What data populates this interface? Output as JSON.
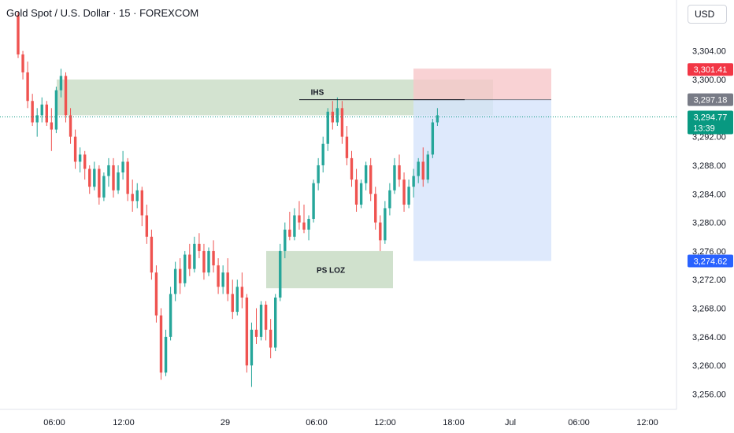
{
  "header": {
    "title": "Gold Spot / U.S. Dollar · 15 · FOREXCOM",
    "currency": "USD"
  },
  "colors": {
    "up": "#26a69a",
    "down": "#ef5350",
    "zone_green": "#c8dcc4",
    "stop_red": "#f7c7c9",
    "target_blue": "#d6e3fb",
    "badge_red": "#f23645",
    "badge_gray": "#787b86",
    "badge_green": "#089981",
    "badge_blue": "#2962ff"
  },
  "annotations": {
    "ihs": "IHS",
    "ps_loz": "PS LOZ"
  },
  "price_badges": {
    "stop": "3,301.41",
    "entry": "3,297.18",
    "last": "3,294.77",
    "countdown": "13:39",
    "target": "3,274.62"
  },
  "chart_data": {
    "type": "candlestick",
    "title": "Gold Spot / U.S. Dollar · 15 · FOREXCOM",
    "y_ticks": [
      "3,304.00",
      "3,300.00",
      "3,292.00",
      "3,288.00",
      "3,284.00",
      "3,280.00",
      "3,276.00",
      "3,272.00",
      "3,268.00",
      "3,264.00",
      "3,260.00",
      "3,256.00"
    ],
    "x_ticks": [
      "06:00",
      "12:00",
      "29",
      "06:00",
      "12:00",
      "18:00",
      "Jul",
      "06:00",
      "12:00"
    ],
    "ylim": [
      3253.5,
      3308.5
    ],
    "key_levels": {
      "stop_loss": 3301.41,
      "entry": 3297.18,
      "last_price": 3294.77,
      "take_profit": 3274.62
    },
    "zones": [
      {
        "label": "",
        "from": 3295.0,
        "to": 3300.0
      },
      {
        "label": "PS LOZ",
        "from": 3270.8,
        "to": 3276.0
      }
    ],
    "ihs_neckline": 3297.18,
    "candles": [
      [
        3309,
        3309.5,
        3303,
        3303.5
      ],
      [
        3303.5,
        3304,
        3300,
        3301
      ],
      [
        3301,
        3302.5,
        3296,
        3297
      ],
      [
        3297,
        3298,
        3293.5,
        3294
      ],
      [
        3294,
        3296,
        3292,
        3295
      ],
      [
        3295,
        3297.5,
        3294,
        3296.5
      ],
      [
        3296.5,
        3297,
        3293.5,
        3294
      ],
      [
        3294,
        3296,
        3290,
        3293
      ],
      [
        3293,
        3299,
        3292.5,
        3298.5
      ],
      [
        3298.5,
        3301.5,
        3297.5,
        3300.5
      ],
      [
        3300.5,
        3301,
        3294,
        3295
      ],
      [
        3295,
        3296,
        3291,
        3292
      ],
      [
        3292,
        3293,
        3287.5,
        3288.5
      ],
      [
        3288.5,
        3290.5,
        3287,
        3289.5
      ],
      [
        3289.5,
        3290,
        3286,
        3287.5
      ],
      [
        3287.5,
        3288,
        3284,
        3285
      ],
      [
        3285,
        3288.5,
        3284.5,
        3287.5
      ],
      [
        3287.5,
        3288,
        3282.5,
        3283.5
      ],
      [
        3283.5,
        3287,
        3283,
        3286.5
      ],
      [
        3286.5,
        3289,
        3285,
        3288
      ],
      [
        3288,
        3289,
        3283.5,
        3284.5
      ],
      [
        3284.5,
        3288,
        3284,
        3287
      ],
      [
        3287,
        3290,
        3286,
        3288.5
      ],
      [
        3288.5,
        3289,
        3283,
        3284
      ],
      [
        3284,
        3286,
        3281.5,
        3283
      ],
      [
        3283,
        3285.5,
        3282,
        3284.5
      ],
      [
        3284.5,
        3285,
        3279.5,
        3281
      ],
      [
        3281,
        3282.5,
        3277,
        3278
      ],
      [
        3278,
        3279,
        3272,
        3273
      ],
      [
        3273,
        3274,
        3266,
        3267
      ],
      [
        3267,
        3268,
        3258,
        3259
      ],
      [
        3259,
        3265,
        3258.5,
        3264
      ],
      [
        3264,
        3271,
        3263.5,
        3270
      ],
      [
        3270,
        3274.5,
        3269,
        3273.5
      ],
      [
        3273.5,
        3275,
        3270,
        3271.5
      ],
      [
        3271.5,
        3276,
        3271,
        3275.5
      ],
      [
        3275.5,
        3277,
        3272.5,
        3273.5
      ],
      [
        3273.5,
        3278,
        3273,
        3277
      ],
      [
        3277,
        3278.5,
        3275,
        3276
      ],
      [
        3276,
        3277,
        3272,
        3273
      ],
      [
        3273,
        3276.5,
        3272.5,
        3276
      ],
      [
        3276,
        3277.5,
        3273,
        3274
      ],
      [
        3274,
        3275,
        3270,
        3271
      ],
      [
        3271,
        3274,
        3270,
        3273
      ],
      [
        3273,
        3275,
        3269,
        3270
      ],
      [
        3270,
        3272,
        3266.5,
        3267.5
      ],
      [
        3267.5,
        3272,
        3267,
        3271
      ],
      [
        3271,
        3273,
        3268,
        3269.5
      ],
      [
        3269.5,
        3270,
        3259,
        3260
      ],
      [
        3260,
        3266,
        3257,
        3265
      ],
      [
        3265,
        3268,
        3263,
        3264
      ],
      [
        3264,
        3269,
        3263.5,
        3268.5
      ],
      [
        3268.5,
        3269,
        3263.5,
        3265
      ],
      [
        3265,
        3266.5,
        3261,
        3262.5
      ],
      [
        3262.5,
        3270,
        3262,
        3269.5
      ],
      [
        3269.5,
        3277,
        3269,
        3276
      ],
      [
        3276,
        3280,
        3275,
        3279
      ],
      [
        3279,
        3281.5,
        3277.5,
        3278
      ],
      [
        3278,
        3282,
        3277.5,
        3281
      ],
      [
        3281,
        3283,
        3279,
        3280
      ],
      [
        3280,
        3282.5,
        3278.5,
        3279
      ],
      [
        3279,
        3281,
        3277.5,
        3280.5
      ],
      [
        3280.5,
        3286,
        3280,
        3285.5
      ],
      [
        3285.5,
        3289,
        3284.5,
        3288
      ],
      [
        3288,
        3292,
        3287,
        3291
      ],
      [
        3291,
        3296,
        3290,
        3295.5
      ],
      [
        3295.5,
        3297,
        3293,
        3294
      ],
      [
        3294,
        3297.5,
        3293.5,
        3296
      ],
      [
        3296,
        3297,
        3291,
        3292
      ],
      [
        3292,
        3293.5,
        3288,
        3289
      ],
      [
        3289,
        3290,
        3285,
        3286
      ],
      [
        3286,
        3287.5,
        3281.5,
        3282.5
      ],
      [
        3282.5,
        3286,
        3282,
        3285.5
      ],
      [
        3285.5,
        3288.5,
        3284.5,
        3288
      ],
      [
        3288,
        3289,
        3283,
        3284
      ],
      [
        3284,
        3285,
        3279,
        3280
      ],
      [
        3280,
        3281,
        3276,
        3277.5
      ],
      [
        3277.5,
        3283,
        3277,
        3282
      ],
      [
        3282,
        3285.5,
        3281,
        3284.5
      ],
      [
        3284.5,
        3289,
        3284,
        3288
      ],
      [
        3288,
        3289.5,
        3285,
        3286
      ],
      [
        3286,
        3287,
        3281.5,
        3282.5
      ],
      [
        3282.5,
        3286,
        3282,
        3285
      ],
      [
        3285,
        3287.5,
        3283.5,
        3286.5
      ],
      [
        3286.5,
        3289,
        3285.5,
        3288.5
      ],
      [
        3288.5,
        3290.5,
        3285,
        3286
      ],
      [
        3286,
        3290,
        3285.5,
        3289.5
      ],
      [
        3289.5,
        3294.5,
        3289,
        3294
      ],
      [
        3294,
        3296,
        3293.5,
        3295
      ]
    ]
  }
}
